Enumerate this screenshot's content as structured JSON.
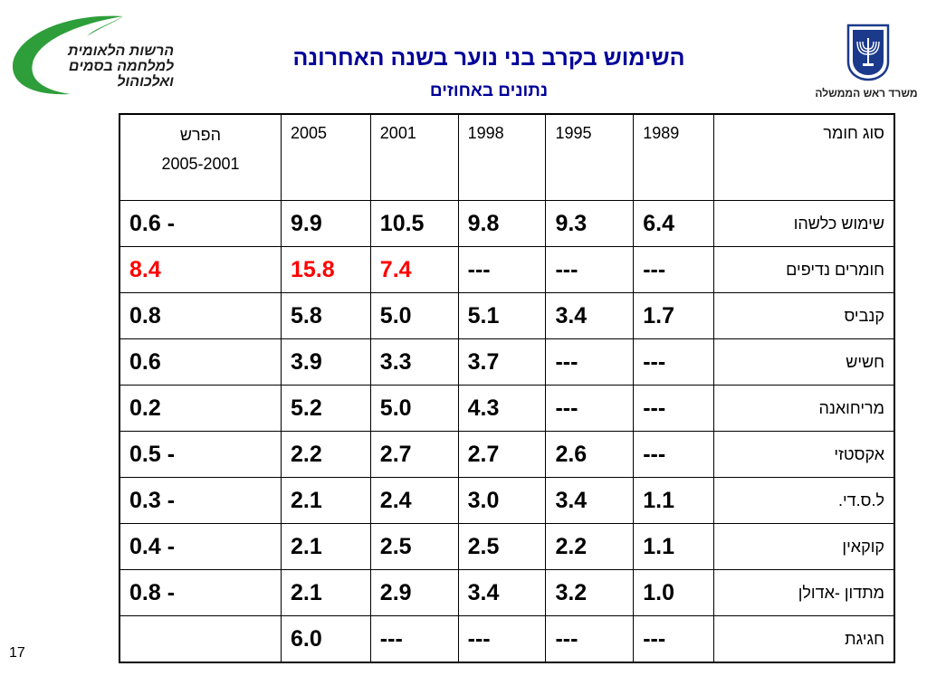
{
  "logo_left": {
    "lines": [
      "הרשות הלאומית",
      "למלחמה בסמים",
      "ואלכוהול"
    ],
    "accent": "#2e9e3a"
  },
  "logo_right": {
    "caption": "משרד ראש הממשלה",
    "accent": "#1b3a8c"
  },
  "title": "השימוש בקרב בני נוער בשנה האחרונה",
  "subtitle": "נתונים באחוזים",
  "table": {
    "headers": [
      "סוג חומר",
      "1989",
      "1995",
      "1998",
      "2001",
      "2005",
      "הפרש",
      "2005-2001"
    ],
    "rows": [
      [
        "שימוש כלשהו",
        "6.4",
        "9.3",
        "9.8",
        "10.5",
        "9.9",
        "- 0.6"
      ],
      [
        "חומרים נדיפים",
        "---",
        "---",
        "---",
        "7.4",
        "15.8",
        "8.4"
      ],
      [
        "קנביס",
        "1.7",
        "3.4",
        "5.1",
        "5.0",
        "5.8",
        "0.8"
      ],
      [
        "חשיש",
        "---",
        "---",
        "3.7",
        "3.3",
        "3.9",
        "0.6"
      ],
      [
        "מריחואנה",
        "---",
        "---",
        "4.3",
        "5.0",
        "5.2",
        "0.2"
      ],
      [
        "אקסטזי",
        "---",
        "2.6",
        "2.7",
        "2.7",
        "2.2",
        "- 0.5"
      ],
      [
        "ל.ס.די.",
        "1.1",
        "3.4",
        "3.0",
        "2.4",
        "2.1",
        "- 0.3"
      ],
      [
        "קוקאין",
        "1.1",
        "2.2",
        "2.5",
        "2.5",
        "2.1",
        "- 0.4"
      ],
      [
        "מתדון -אדולן",
        "1.0",
        "3.2",
        "3.4",
        "2.9",
        "2.1",
        "- 0.8"
      ],
      [
        "חגיגת",
        "---",
        "---",
        "---",
        "---",
        "6.0",
        ""
      ]
    ],
    "highlight_color": "#ff0000"
  },
  "page_number": "17"
}
